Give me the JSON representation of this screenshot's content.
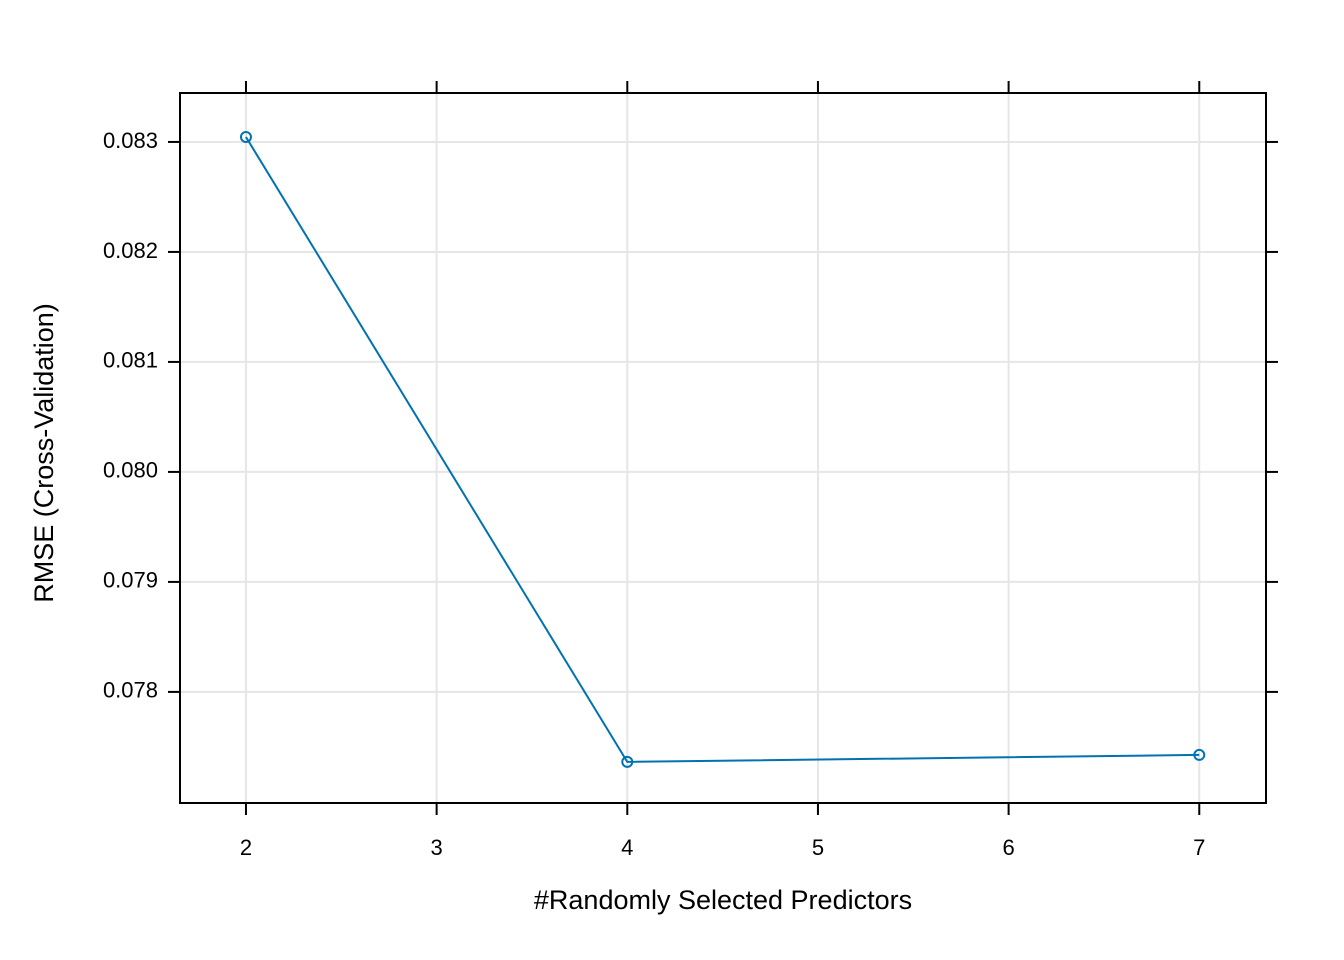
{
  "chart_data": {
    "type": "line",
    "xlabel": "#Randomly Selected Predictors",
    "ylabel": "RMSE (Cross-Validation)",
    "x": [
      2,
      4,
      7
    ],
    "series": [
      {
        "color": "#0072b2",
        "values": [
          0.083045,
          0.077364,
          0.077427
        ]
      }
    ],
    "xlim": [
      1.654,
      7.35
    ],
    "xticks": [
      2,
      3,
      4,
      5,
      6,
      7
    ],
    "ylim": [
      0.07699,
      0.083445
    ],
    "yticks": [
      0.083,
      0.082,
      0.081,
      0.08,
      0.079,
      0.078
    ],
    "grid": true
  }
}
